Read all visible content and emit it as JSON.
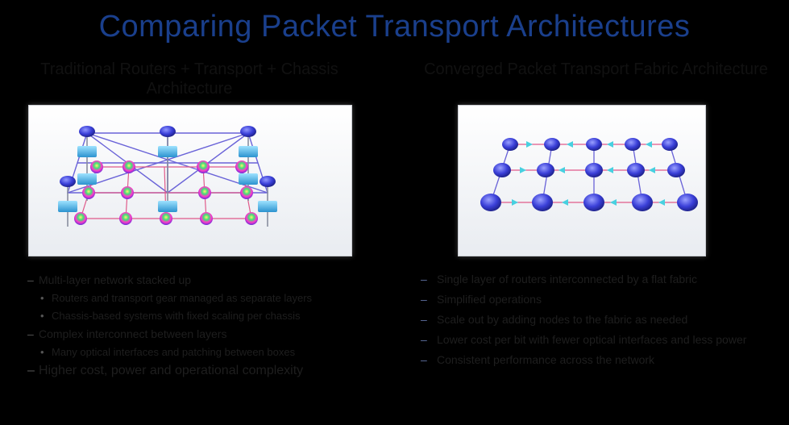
{
  "page": {
    "title": "Comparing Packet Transport Architectures"
  },
  "left_column": {
    "heading": "Traditional Routers + Transport + Chassis Architecture",
    "bullets": [
      {
        "text": "Multi-layer network stacked up",
        "level": 1,
        "large": false
      },
      {
        "text": "Routers and transport gear managed as separate layers",
        "level": 2,
        "large": false
      },
      {
        "text": "Chassis-based systems with fixed scaling per chassis",
        "level": 2,
        "large": false
      },
      {
        "text": "Complex interconnect between layers",
        "level": 1,
        "large": false
      },
      {
        "text": "Many optical interfaces and patching between boxes",
        "level": 2,
        "large": false
      },
      {
        "text": "Higher cost, power and operational complexity",
        "level": 1,
        "large": true
      }
    ]
  },
  "right_column": {
    "heading": "Converged Packet Transport Fabric Architecture",
    "bullets": [
      {
        "text": "Single layer of routers interconnected by a flat fabric"
      },
      {
        "text": "Simplified operations"
      },
      {
        "text": "Scale out by adding nodes to the fabric as needed"
      },
      {
        "text": "Lower cost per bit with fewer optical interfaces and less power"
      },
      {
        "text": "Consistent performance across the network"
      }
    ]
  },
  "colors": {
    "title": "#1a3f8c",
    "router": "#3a3fd8",
    "switch": "#47b3e6",
    "link_purple": "#6a63d8",
    "link_pink": "#e05a8a",
    "link_cyan": "#48d0e0",
    "optical_rainbow": "#ff3cc8"
  },
  "icons": {
    "router": "router-icon",
    "switch": "switch-icon",
    "optical": "optical-node-icon"
  }
}
